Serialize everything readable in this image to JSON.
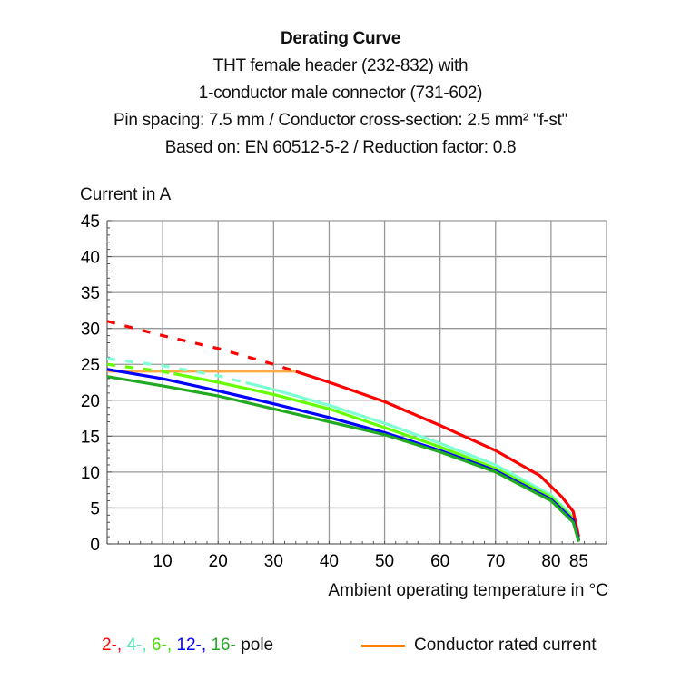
{
  "chart_data": {
    "type": "line",
    "title": "Derating Curve",
    "subtitle_lines": [
      "THT female header (232-832) with",
      "1-conductor male connector  (731-602)",
      "Pin spacing: 7.5 mm / Conductor cross-section: 2.5 mm² \"f-st\"",
      "Based on: EN 60512-5-2 / Reduction factor: 0.8"
    ],
    "ylabel": "Current in A",
    "xlabel": "Ambient operating temperature in °C",
    "xlim": [
      0,
      90
    ],
    "ylim": [
      0,
      45
    ],
    "xticks": [
      10,
      20,
      30,
      40,
      50,
      60,
      70,
      80,
      85
    ],
    "yticks": [
      0,
      5,
      10,
      15,
      20,
      25,
      30,
      35,
      40,
      45
    ],
    "grid": true,
    "series": [
      {
        "name": "2-",
        "color": "#ff0000",
        "dashed_until": 34,
        "x": [
          0,
          10,
          20,
          30,
          34,
          40,
          50,
          60,
          70,
          78,
          82,
          84,
          85
        ],
        "y": [
          31,
          29,
          27.2,
          25,
          24,
          22.5,
          19.8,
          16.5,
          13,
          9.5,
          6.5,
          4.5,
          1
        ]
      },
      {
        "name": "4-",
        "color": "#7fffd4",
        "dashed_until": 25,
        "x": [
          0,
          10,
          20,
          30,
          40,
          50,
          60,
          70,
          80,
          84,
          85
        ],
        "y": [
          25.8,
          24.8,
          23.4,
          21.5,
          19.3,
          16.8,
          14,
          11,
          6.8,
          3.8,
          0.8
        ]
      },
      {
        "name": "6-",
        "color": "#66ff00",
        "dashed_until": 12,
        "x": [
          0,
          10,
          20,
          30,
          40,
          50,
          60,
          70,
          80,
          84,
          85
        ],
        "y": [
          25,
          24,
          22.5,
          20.8,
          18.8,
          16.2,
          13.5,
          10.5,
          6.5,
          3.5,
          0.5
        ]
      },
      {
        "name": "12-",
        "color": "#0000ff",
        "dashed_until": 0,
        "x": [
          0,
          10,
          20,
          30,
          40,
          50,
          60,
          70,
          80,
          84,
          85
        ],
        "y": [
          24.3,
          23,
          21.3,
          19.5,
          17.6,
          15.5,
          13,
          10.2,
          6.2,
          3.3,
          0.5
        ]
      },
      {
        "name": "16-",
        "color": "#22aa22",
        "dashed_until": 0,
        "x": [
          0,
          10,
          20,
          30,
          40,
          50,
          60,
          70,
          80,
          84,
          85
        ],
        "y": [
          23.3,
          22,
          20.6,
          18.8,
          17,
          15.2,
          12.8,
          10,
          6,
          3,
          0.3
        ]
      },
      {
        "name": "Conductor rated current",
        "color": "#ffaa44",
        "dashed_until": 0,
        "x": [
          0,
          34
        ],
        "y": [
          24,
          24
        ]
      }
    ],
    "legend": {
      "pole_suffix": "pole",
      "rated_label": "Conductor rated current",
      "rated_color": "#ff7f00",
      "placement": "bottom"
    }
  }
}
